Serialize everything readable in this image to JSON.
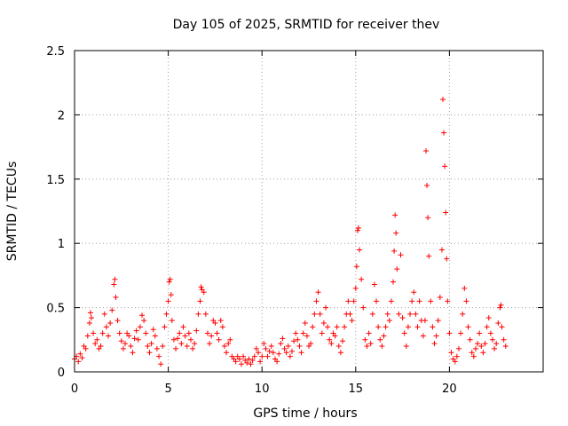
{
  "chart_data": {
    "type": "scatter",
    "title": "Day 105 of 2025, SRMTID for receiver thev",
    "xlabel": "GPS time / hours",
    "ylabel": "SRMTID / TECUs",
    "xlim": [
      0,
      25
    ],
    "ylim": [
      0,
      2.5
    ],
    "xticks": [
      0,
      5,
      10,
      15,
      20
    ],
    "yticks": [
      0,
      0.5,
      1,
      1.5,
      2,
      2.5
    ],
    "xtick_labels": [
      "0",
      "5",
      "10",
      "15",
      "20"
    ],
    "ytick_labels": [
      "0",
      "0.5",
      "1",
      "1.5",
      "2",
      "2.5"
    ],
    "grid": true,
    "marker": "+",
    "series": [
      {
        "name": "SRMTID",
        "color": "#ff0000",
        "points": [
          [
            0.0,
            0.1
          ],
          [
            0.1,
            0.12
          ],
          [
            0.2,
            0.08
          ],
          [
            0.3,
            0.14
          ],
          [
            0.4,
            0.11
          ],
          [
            0.5,
            0.2
          ],
          [
            0.6,
            0.18
          ],
          [
            0.7,
            0.28
          ],
          [
            0.8,
            0.38
          ],
          [
            0.85,
            0.46
          ],
          [
            0.9,
            0.42
          ],
          [
            1.0,
            0.3
          ],
          [
            1.1,
            0.22
          ],
          [
            1.2,
            0.25
          ],
          [
            1.3,
            0.18
          ],
          [
            1.4,
            0.2
          ],
          [
            1.5,
            0.3
          ],
          [
            1.6,
            0.45
          ],
          [
            1.7,
            0.35
          ],
          [
            1.8,
            0.28
          ],
          [
            1.9,
            0.38
          ],
          [
            2.0,
            0.48
          ],
          [
            2.1,
            0.68
          ],
          [
            2.15,
            0.72
          ],
          [
            2.2,
            0.58
          ],
          [
            2.3,
            0.4
          ],
          [
            2.4,
            0.3
          ],
          [
            2.5,
            0.24
          ],
          [
            2.6,
            0.18
          ],
          [
            2.7,
            0.22
          ],
          [
            2.8,
            0.3
          ],
          [
            2.9,
            0.28
          ],
          [
            3.0,
            0.2
          ],
          [
            3.1,
            0.15
          ],
          [
            3.2,
            0.26
          ],
          [
            3.3,
            0.32
          ],
          [
            3.4,
            0.25
          ],
          [
            3.5,
            0.35
          ],
          [
            3.6,
            0.44
          ],
          [
            3.7,
            0.4
          ],
          [
            3.8,
            0.3
          ],
          [
            3.9,
            0.2
          ],
          [
            4.0,
            0.15
          ],
          [
            4.1,
            0.22
          ],
          [
            4.2,
            0.33
          ],
          [
            4.3,
            0.28
          ],
          [
            4.4,
            0.18
          ],
          [
            4.5,
            0.12
          ],
          [
            4.6,
            0.06
          ],
          [
            4.7,
            0.2
          ],
          [
            4.8,
            0.35
          ],
          [
            4.9,
            0.45
          ],
          [
            5.0,
            0.55
          ],
          [
            5.05,
            0.7
          ],
          [
            5.1,
            0.72
          ],
          [
            5.15,
            0.6
          ],
          [
            5.2,
            0.4
          ],
          [
            5.3,
            0.25
          ],
          [
            5.4,
            0.18
          ],
          [
            5.5,
            0.26
          ],
          [
            5.6,
            0.3
          ],
          [
            5.7,
            0.22
          ],
          [
            5.8,
            0.35
          ],
          [
            5.9,
            0.28
          ],
          [
            6.0,
            0.2
          ],
          [
            6.1,
            0.3
          ],
          [
            6.2,
            0.25
          ],
          [
            6.3,
            0.18
          ],
          [
            6.4,
            0.22
          ],
          [
            6.5,
            0.32
          ],
          [
            6.6,
            0.45
          ],
          [
            6.7,
            0.55
          ],
          [
            6.75,
            0.66
          ],
          [
            6.8,
            0.64
          ],
          [
            6.9,
            0.62
          ],
          [
            7.0,
            0.45
          ],
          [
            7.1,
            0.3
          ],
          [
            7.2,
            0.22
          ],
          [
            7.3,
            0.28
          ],
          [
            7.4,
            0.4
          ],
          [
            7.5,
            0.38
          ],
          [
            7.6,
            0.3
          ],
          [
            7.7,
            0.25
          ],
          [
            7.8,
            0.4
          ],
          [
            7.9,
            0.35
          ],
          [
            8.0,
            0.2
          ],
          [
            8.1,
            0.15
          ],
          [
            8.2,
            0.22
          ],
          [
            8.3,
            0.25
          ],
          [
            8.4,
            0.12
          ],
          [
            8.5,
            0.1
          ],
          [
            8.6,
            0.08
          ],
          [
            8.7,
            0.12
          ],
          [
            8.8,
            0.1
          ],
          [
            8.9,
            0.06
          ],
          [
            9.0,
            0.12
          ],
          [
            9.1,
            0.09
          ],
          [
            9.2,
            0.07
          ],
          [
            9.3,
            0.1
          ],
          [
            9.4,
            0.06
          ],
          [
            9.5,
            0.09
          ],
          [
            9.6,
            0.12
          ],
          [
            9.7,
            0.18
          ],
          [
            9.8,
            0.15
          ],
          [
            9.9,
            0.08
          ],
          [
            10.0,
            0.12
          ],
          [
            10.1,
            0.22
          ],
          [
            10.2,
            0.18
          ],
          [
            10.3,
            0.12
          ],
          [
            10.4,
            0.16
          ],
          [
            10.5,
            0.2
          ],
          [
            10.6,
            0.15
          ],
          [
            10.7,
            0.1
          ],
          [
            10.8,
            0.08
          ],
          [
            10.9,
            0.14
          ],
          [
            11.0,
            0.22
          ],
          [
            11.1,
            0.26
          ],
          [
            11.2,
            0.18
          ],
          [
            11.3,
            0.15
          ],
          [
            11.4,
            0.2
          ],
          [
            11.5,
            0.12
          ],
          [
            11.6,
            0.16
          ],
          [
            11.7,
            0.24
          ],
          [
            11.8,
            0.3
          ],
          [
            11.9,
            0.25
          ],
          [
            12.0,
            0.2
          ],
          [
            12.1,
            0.15
          ],
          [
            12.2,
            0.3
          ],
          [
            12.3,
            0.38
          ],
          [
            12.4,
            0.28
          ],
          [
            12.5,
            0.2
          ],
          [
            12.6,
            0.22
          ],
          [
            12.7,
            0.35
          ],
          [
            12.8,
            0.45
          ],
          [
            12.9,
            0.55
          ],
          [
            13.0,
            0.62
          ],
          [
            13.1,
            0.45
          ],
          [
            13.2,
            0.3
          ],
          [
            13.3,
            0.38
          ],
          [
            13.4,
            0.5
          ],
          [
            13.5,
            0.35
          ],
          [
            13.6,
            0.25
          ],
          [
            13.7,
            0.22
          ],
          [
            13.8,
            0.3
          ],
          [
            13.9,
            0.28
          ],
          [
            14.0,
            0.35
          ],
          [
            14.1,
            0.2
          ],
          [
            14.2,
            0.15
          ],
          [
            14.3,
            0.24
          ],
          [
            14.4,
            0.35
          ],
          [
            14.5,
            0.45
          ],
          [
            14.6,
            0.55
          ],
          [
            14.7,
            0.45
          ],
          [
            14.8,
            0.4
          ],
          [
            14.9,
            0.55
          ],
          [
            15.0,
            0.65
          ],
          [
            15.05,
            0.82
          ],
          [
            15.1,
            1.1
          ],
          [
            15.15,
            1.12
          ],
          [
            15.2,
            0.95
          ],
          [
            15.3,
            0.72
          ],
          [
            15.4,
            0.5
          ],
          [
            15.5,
            0.25
          ],
          [
            15.6,
            0.2
          ],
          [
            15.7,
            0.3
          ],
          [
            15.8,
            0.22
          ],
          [
            15.9,
            0.45
          ],
          [
            16.0,
            0.68
          ],
          [
            16.1,
            0.55
          ],
          [
            16.2,
            0.35
          ],
          [
            16.3,
            0.25
          ],
          [
            16.4,
            0.2
          ],
          [
            16.5,
            0.28
          ],
          [
            16.6,
            0.35
          ],
          [
            16.7,
            0.45
          ],
          [
            16.8,
            0.4
          ],
          [
            16.9,
            0.55
          ],
          [
            17.0,
            0.7
          ],
          [
            17.05,
            0.94
          ],
          [
            17.1,
            1.22
          ],
          [
            17.15,
            1.08
          ],
          [
            17.2,
            0.8
          ],
          [
            17.3,
            0.45
          ],
          [
            17.4,
            0.91
          ],
          [
            17.5,
            0.42
          ],
          [
            17.6,
            0.3
          ],
          [
            17.7,
            0.2
          ],
          [
            17.8,
            0.35
          ],
          [
            17.9,
            0.45
          ],
          [
            18.0,
            0.55
          ],
          [
            18.1,
            0.62
          ],
          [
            18.2,
            0.45
          ],
          [
            18.3,
            0.35
          ],
          [
            18.4,
            0.55
          ],
          [
            18.5,
            0.4
          ],
          [
            18.6,
            0.28
          ],
          [
            18.7,
            0.4
          ],
          [
            18.75,
            1.72
          ],
          [
            18.8,
            1.45
          ],
          [
            18.85,
            1.2
          ],
          [
            18.9,
            0.9
          ],
          [
            19.0,
            0.55
          ],
          [
            19.1,
            0.35
          ],
          [
            19.2,
            0.22
          ],
          [
            19.3,
            0.28
          ],
          [
            19.4,
            0.4
          ],
          [
            19.5,
            0.58
          ],
          [
            19.6,
            0.95
          ],
          [
            19.65,
            2.12
          ],
          [
            19.7,
            1.86
          ],
          [
            19.75,
            1.6
          ],
          [
            19.8,
            1.24
          ],
          [
            19.85,
            0.88
          ],
          [
            19.9,
            0.55
          ],
          [
            20.0,
            0.3
          ],
          [
            20.1,
            0.15
          ],
          [
            20.2,
            0.1
          ],
          [
            20.3,
            0.08
          ],
          [
            20.4,
            0.12
          ],
          [
            20.5,
            0.18
          ],
          [
            20.6,
            0.3
          ],
          [
            20.7,
            0.45
          ],
          [
            20.8,
            0.65
          ],
          [
            20.9,
            0.55
          ],
          [
            21.0,
            0.35
          ],
          [
            21.1,
            0.25
          ],
          [
            21.2,
            0.15
          ],
          [
            21.3,
            0.12
          ],
          [
            21.4,
            0.18
          ],
          [
            21.5,
            0.22
          ],
          [
            21.6,
            0.3
          ],
          [
            21.7,
            0.2
          ],
          [
            21.8,
            0.15
          ],
          [
            21.9,
            0.22
          ],
          [
            22.0,
            0.35
          ],
          [
            22.1,
            0.42
          ],
          [
            22.2,
            0.3
          ],
          [
            22.3,
            0.25
          ],
          [
            22.4,
            0.18
          ],
          [
            22.5,
            0.22
          ],
          [
            22.6,
            0.38
          ],
          [
            22.7,
            0.5
          ],
          [
            22.75,
            0.52
          ],
          [
            22.8,
            0.35
          ],
          [
            22.9,
            0.25
          ],
          [
            23.0,
            0.2
          ]
        ]
      }
    ]
  }
}
